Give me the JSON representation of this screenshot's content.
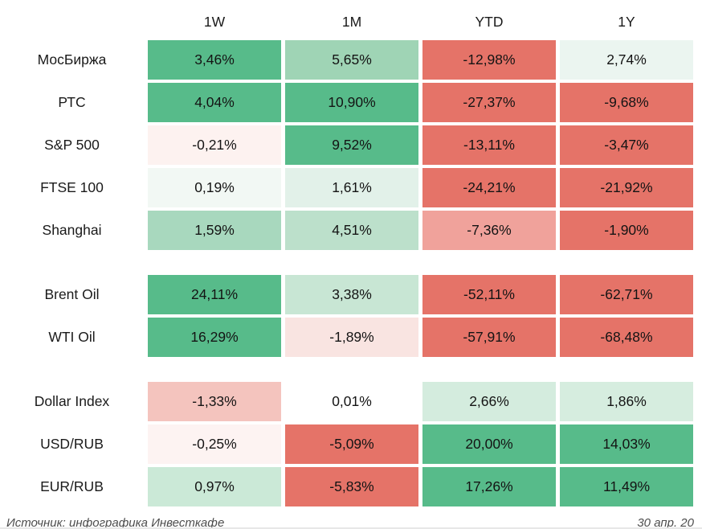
{
  "table": {
    "columns": [
      "1W",
      "1M",
      "YTD",
      "1Y"
    ],
    "sections": [
      {
        "name": "equity-indices",
        "rows": [
          {
            "label": "МосБиржа",
            "cells": [
              {
                "v": "3,46%",
                "bg": "#57BB8A"
              },
              {
                "v": "5,65%",
                "bg": "#9FD4B5"
              },
              {
                "v": "-12,98%",
                "bg": "#E57368"
              },
              {
                "v": "2,74%",
                "bg": "#EBF5F0"
              }
            ]
          },
          {
            "label": "РТС",
            "cells": [
              {
                "v": "4,04%",
                "bg": "#57BB8A"
              },
              {
                "v": "10,90%",
                "bg": "#57BB8A"
              },
              {
                "v": "-27,37%",
                "bg": "#E57368"
              },
              {
                "v": "-9,68%",
                "bg": "#E57368"
              }
            ]
          },
          {
            "label": "S&P 500",
            "cells": [
              {
                "v": "-0,21%",
                "bg": "#FDF2F0"
              },
              {
                "v": "9,52%",
                "bg": "#57BB8A"
              },
              {
                "v": "-13,11%",
                "bg": "#E57368"
              },
              {
                "v": "-3,47%",
                "bg": "#E57368"
              }
            ]
          },
          {
            "label": "FTSE 100",
            "cells": [
              {
                "v": "0,19%",
                "bg": "#F2F8F4"
              },
              {
                "v": "1,61%",
                "bg": "#E2F1E9"
              },
              {
                "v": "-24,21%",
                "bg": "#E57368"
              },
              {
                "v": "-21,92%",
                "bg": "#E57368"
              }
            ]
          },
          {
            "label": "Shanghai",
            "cells": [
              {
                "v": "1,59%",
                "bg": "#A8D8BE"
              },
              {
                "v": "4,51%",
                "bg": "#BCE0CB"
              },
              {
                "v": "-7,36%",
                "bg": "#F0A29B"
              },
              {
                "v": "-1,90%",
                "bg": "#E57368"
              }
            ]
          }
        ]
      },
      {
        "name": "commodities",
        "rows": [
          {
            "label": "Brent Oil",
            "cells": [
              {
                "v": "24,11%",
                "bg": "#57BB8A"
              },
              {
                "v": "3,38%",
                "bg": "#C8E6D4"
              },
              {
                "v": "-52,11%",
                "bg": "#E57368"
              },
              {
                "v": "-62,71%",
                "bg": "#E57368"
              }
            ]
          },
          {
            "label": "WTI Oil",
            "cells": [
              {
                "v": "16,29%",
                "bg": "#57BB8A"
              },
              {
                "v": "-1,89%",
                "bg": "#F9E4E1"
              },
              {
                "v": "-57,91%",
                "bg": "#E57368"
              },
              {
                "v": "-68,48%",
                "bg": "#E57368"
              }
            ]
          }
        ]
      },
      {
        "name": "currencies",
        "rows": [
          {
            "label": "Dollar Index",
            "cells": [
              {
                "v": "-1,33%",
                "bg": "#F4C4BE"
              },
              {
                "v": "0,01%",
                "bg": "#FFFFFF"
              },
              {
                "v": "2,66%",
                "bg": "#D4ECDE"
              },
              {
                "v": "1,86%",
                "bg": "#D6EDDF"
              }
            ]
          },
          {
            "label": "USD/RUB",
            "cells": [
              {
                "v": "-0,25%",
                "bg": "#FDF3F2"
              },
              {
                "v": "-5,09%",
                "bg": "#E57368"
              },
              {
                "v": "20,00%",
                "bg": "#57BB8A"
              },
              {
                "v": "14,03%",
                "bg": "#57BB8A"
              }
            ]
          },
          {
            "label": "EUR/RUB",
            "cells": [
              {
                "v": "0,97%",
                "bg": "#CBE9D7"
              },
              {
                "v": "-5,83%",
                "bg": "#E57368"
              },
              {
                "v": "17,26%",
                "bg": "#57BB8A"
              },
              {
                "v": "11,49%",
                "bg": "#57BB8A"
              }
            ]
          }
        ]
      }
    ]
  },
  "footer": {
    "source": "Источник: инфографика Инвесткафе",
    "date": "30 апр. 20"
  },
  "chart_data": {
    "type": "heatmap",
    "title": "",
    "columns": [
      "1W",
      "1M",
      "YTD",
      "1Y"
    ],
    "rows": [
      "МосБиржа",
      "РТС",
      "S&P 500",
      "FTSE 100",
      "Shanghai",
      "Brent Oil",
      "WTI Oil",
      "Dollar Index",
      "USD/RUB",
      "EUR/RUB"
    ],
    "row_groups": [
      [
        "МосБиржа",
        "РТС",
        "S&P 500",
        "FTSE 100",
        "Shanghai"
      ],
      [
        "Brent Oil",
        "WTI Oil"
      ],
      [
        "Dollar Index",
        "USD/RUB",
        "EUR/RUB"
      ]
    ],
    "values_percent": [
      [
        3.46,
        5.65,
        -12.98,
        2.74
      ],
      [
        4.04,
        10.9,
        -27.37,
        -9.68
      ],
      [
        -0.21,
        9.52,
        -13.11,
        -3.47
      ],
      [
        0.19,
        1.61,
        -24.21,
        -21.92
      ],
      [
        1.59,
        4.51,
        -7.36,
        -1.9
      ],
      [
        24.11,
        3.38,
        -52.11,
        -62.71
      ],
      [
        16.29,
        -1.89,
        -57.91,
        -68.48
      ],
      [
        -1.33,
        0.01,
        2.66,
        1.86
      ],
      [
        -0.25,
        -5.09,
        20.0,
        14.03
      ],
      [
        0.97,
        -5.83,
        17.26,
        11.49
      ]
    ],
    "color_positive": "#57BB8A",
    "color_negative": "#E57368",
    "color_neutral": "#FFFFFF",
    "legend_position": "none",
    "grid": false
  }
}
